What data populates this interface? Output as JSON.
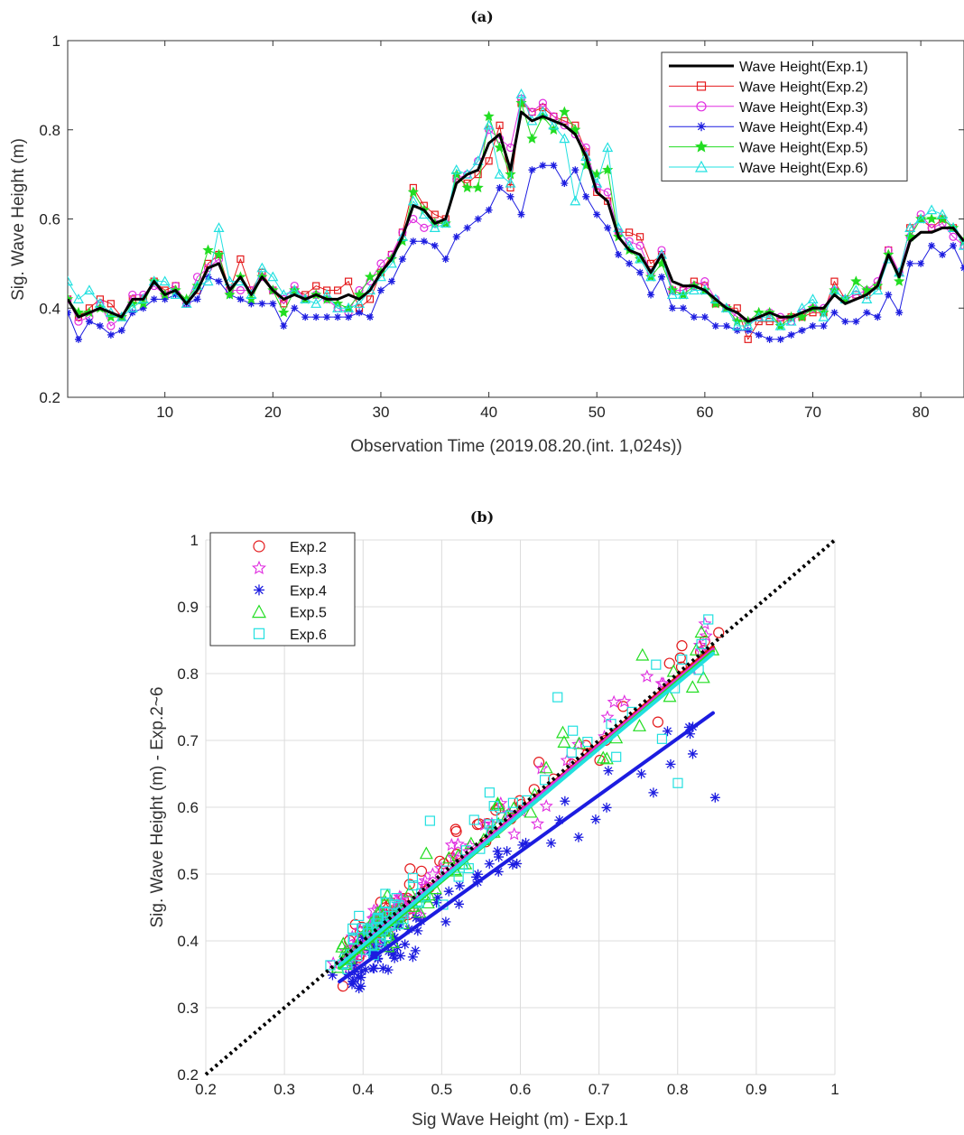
{
  "chart_data": [
    {
      "type": "line",
      "panel_label": "(a)",
      "xlabel": "Observation Time (2019.08.20.(int. 1,024s))",
      "ylabel": "Sig. Wave Height (m)",
      "xlim": [
        1,
        84
      ],
      "ylim": [
        0.2,
        1.0
      ],
      "xticks": [
        "10",
        "20",
        "30",
        "40",
        "50",
        "60",
        "70",
        "80"
      ],
      "yticks": [
        "0.2",
        "0.4",
        "0.6",
        "0.8",
        "1"
      ],
      "grid": false,
      "legend_position": "top-right",
      "x": [
        1,
        2,
        3,
        4,
        5,
        6,
        7,
        8,
        9,
        10,
        11,
        12,
        13,
        14,
        15,
        16,
        17,
        18,
        19,
        20,
        21,
        22,
        23,
        24,
        25,
        26,
        27,
        28,
        29,
        30,
        31,
        32,
        33,
        34,
        35,
        36,
        37,
        38,
        39,
        40,
        41,
        42,
        43,
        44,
        45,
        46,
        47,
        48,
        49,
        50,
        51,
        52,
        53,
        54,
        55,
        56,
        57,
        58,
        59,
        60,
        61,
        62,
        63,
        64,
        65,
        66,
        67,
        68,
        69,
        70,
        71,
        72,
        73,
        74,
        75,
        76,
        77,
        78,
        79,
        80,
        81,
        82,
        83,
        84
      ],
      "series": [
        {
          "name": "Wave Height(Exp.1)",
          "color": "#000000",
          "marker": "none",
          "width": 3,
          "values": [
            0.42,
            0.38,
            0.39,
            0.4,
            0.39,
            0.38,
            0.42,
            0.42,
            0.46,
            0.43,
            0.44,
            0.41,
            0.44,
            0.49,
            0.5,
            0.44,
            0.47,
            0.43,
            0.47,
            0.44,
            0.42,
            0.43,
            0.42,
            0.43,
            0.42,
            0.42,
            0.43,
            0.42,
            0.44,
            0.48,
            0.51,
            0.56,
            0.63,
            0.62,
            0.59,
            0.6,
            0.68,
            0.7,
            0.71,
            0.77,
            0.79,
            0.71,
            0.84,
            0.82,
            0.83,
            0.82,
            0.81,
            0.79,
            0.74,
            0.66,
            0.64,
            0.56,
            0.53,
            0.52,
            0.48,
            0.52,
            0.46,
            0.45,
            0.45,
            0.44,
            0.42,
            0.4,
            0.39,
            0.37,
            0.38,
            0.39,
            0.38,
            0.38,
            0.39,
            0.4,
            0.4,
            0.43,
            0.41,
            0.42,
            0.43,
            0.45,
            0.52,
            0.47,
            0.55,
            0.57,
            0.57,
            0.58,
            0.58,
            0.55
          ]
        },
        {
          "name": "Wave Height(Exp.2)",
          "color": "#e41a1c",
          "marker": "square",
          "width": 1,
          "values": [
            0.42,
            0.38,
            0.4,
            0.42,
            0.41,
            0.38,
            0.42,
            0.42,
            0.46,
            0.44,
            0.45,
            0.41,
            0.44,
            0.5,
            0.52,
            0.44,
            0.51,
            0.44,
            0.48,
            0.44,
            0.41,
            0.44,
            0.43,
            0.45,
            0.44,
            0.44,
            0.46,
            0.4,
            0.42,
            0.48,
            0.52,
            0.57,
            0.67,
            0.63,
            0.61,
            0.6,
            0.69,
            0.68,
            0.7,
            0.73,
            0.81,
            0.67,
            0.86,
            0.84,
            0.85,
            0.83,
            0.82,
            0.81,
            0.75,
            0.66,
            0.64,
            0.57,
            0.57,
            0.56,
            0.5,
            0.52,
            0.44,
            0.44,
            0.46,
            0.45,
            0.41,
            0.4,
            0.4,
            0.33,
            0.37,
            0.37,
            0.37,
            0.38,
            0.38,
            0.39,
            0.39,
            0.46,
            0.42,
            0.43,
            0.43,
            0.45,
            0.53,
            0.48,
            0.58,
            0.6,
            0.58,
            0.6,
            0.58,
            0.55
          ]
        },
        {
          "name": "Wave Height(Exp.3)",
          "color": "#e02ee0",
          "marker": "circle",
          "width": 1,
          "values": [
            0.42,
            0.37,
            0.38,
            0.41,
            0.36,
            0.38,
            0.43,
            0.43,
            0.45,
            0.43,
            0.45,
            0.41,
            0.47,
            0.49,
            0.51,
            0.44,
            0.44,
            0.44,
            0.47,
            0.44,
            0.42,
            0.45,
            0.42,
            0.43,
            0.42,
            0.4,
            0.39,
            0.44,
            0.46,
            0.5,
            0.52,
            0.57,
            0.6,
            0.58,
            0.59,
            0.59,
            0.69,
            0.7,
            0.73,
            0.8,
            0.78,
            0.76,
            0.87,
            0.84,
            0.86,
            0.83,
            0.81,
            0.79,
            0.76,
            0.67,
            0.66,
            0.57,
            0.55,
            0.54,
            0.48,
            0.53,
            0.44,
            0.44,
            0.45,
            0.46,
            0.42,
            0.4,
            0.38,
            0.37,
            0.38,
            0.39,
            0.38,
            0.37,
            0.39,
            0.4,
            0.4,
            0.44,
            0.42,
            0.43,
            0.44,
            0.46,
            0.53,
            0.48,
            0.56,
            0.61,
            0.58,
            0.59,
            0.56,
            0.54
          ]
        },
        {
          "name": "Wave Height(Exp.4)",
          "color": "#1c1ce0",
          "marker": "asterisk",
          "width": 1,
          "values": [
            0.39,
            0.33,
            0.37,
            0.36,
            0.34,
            0.35,
            0.39,
            0.4,
            0.42,
            0.42,
            0.43,
            0.41,
            0.42,
            0.47,
            0.46,
            0.43,
            0.42,
            0.41,
            0.41,
            0.41,
            0.36,
            0.4,
            0.38,
            0.38,
            0.38,
            0.38,
            0.38,
            0.39,
            0.38,
            0.44,
            0.46,
            0.51,
            0.55,
            0.55,
            0.54,
            0.51,
            0.56,
            0.58,
            0.6,
            0.62,
            0.67,
            0.65,
            0.61,
            0.71,
            0.72,
            0.72,
            0.68,
            0.71,
            0.65,
            0.61,
            0.58,
            0.52,
            0.5,
            0.48,
            0.43,
            0.47,
            0.4,
            0.4,
            0.38,
            0.38,
            0.36,
            0.36,
            0.35,
            0.35,
            0.34,
            0.33,
            0.33,
            0.34,
            0.35,
            0.36,
            0.36,
            0.39,
            0.37,
            0.37,
            0.39,
            0.38,
            0.43,
            0.39,
            0.5,
            0.5,
            0.54,
            0.52,
            0.54,
            0.49
          ]
        },
        {
          "name": "Wave Height(Exp.5)",
          "color": "#22dd22",
          "marker": "star",
          "width": 1,
          "values": [
            0.42,
            0.39,
            0.39,
            0.4,
            0.38,
            0.38,
            0.41,
            0.41,
            0.46,
            0.43,
            0.44,
            0.42,
            0.45,
            0.53,
            0.52,
            0.43,
            0.47,
            0.42,
            0.47,
            0.44,
            0.39,
            0.44,
            0.42,
            0.43,
            0.42,
            0.41,
            0.4,
            0.43,
            0.47,
            0.48,
            0.51,
            0.55,
            0.66,
            0.62,
            0.59,
            0.59,
            0.7,
            0.67,
            0.67,
            0.83,
            0.76,
            0.7,
            0.86,
            0.78,
            0.83,
            0.8,
            0.84,
            0.8,
            0.72,
            0.7,
            0.71,
            0.56,
            0.53,
            0.51,
            0.47,
            0.5,
            0.44,
            0.43,
            0.45,
            0.44,
            0.41,
            0.4,
            0.37,
            0.37,
            0.39,
            0.39,
            0.36,
            0.38,
            0.38,
            0.4,
            0.39,
            0.44,
            0.42,
            0.46,
            0.44,
            0.45,
            0.52,
            0.46,
            0.56,
            0.6,
            0.6,
            0.6,
            0.58,
            0.55
          ]
        },
        {
          "name": "Wave Height(Exp.6)",
          "color": "#22e0e0",
          "marker": "triangle",
          "width": 1,
          "values": [
            0.46,
            0.42,
            0.44,
            0.41,
            0.39,
            0.38,
            0.4,
            0.42,
            0.46,
            0.46,
            0.43,
            0.41,
            0.45,
            0.46,
            0.58,
            0.46,
            0.46,
            0.43,
            0.49,
            0.47,
            0.43,
            0.44,
            0.42,
            0.41,
            0.43,
            0.4,
            0.4,
            0.41,
            0.44,
            0.47,
            0.5,
            0.56,
            0.64,
            0.61,
            0.58,
            0.59,
            0.71,
            0.7,
            0.73,
            0.81,
            0.7,
            0.68,
            0.88,
            0.82,
            0.84,
            0.81,
            0.78,
            0.64,
            0.74,
            0.68,
            0.76,
            0.58,
            0.54,
            0.51,
            0.47,
            0.52,
            0.43,
            0.43,
            0.44,
            0.44,
            0.42,
            0.4,
            0.36,
            0.36,
            0.38,
            0.38,
            0.36,
            0.37,
            0.4,
            0.42,
            0.38,
            0.44,
            0.42,
            0.44,
            0.42,
            0.44,
            0.51,
            0.48,
            0.58,
            0.6,
            0.62,
            0.61,
            0.58,
            0.54
          ]
        }
      ]
    },
    {
      "type": "scatter",
      "panel_label": "(b)",
      "xlabel": "Sig Wave Height (m) - Exp.1",
      "ylabel": "Sig. Wave Height (m) - Exp.2~6",
      "xlim": [
        0.2,
        1.0
      ],
      "ylim": [
        0.2,
        1.0
      ],
      "xticks": [
        "0.2",
        "0.3",
        "0.4",
        "0.5",
        "0.6",
        "0.7",
        "0.8",
        "0.9",
        "1"
      ],
      "yticks": [
        "0.2",
        "0.3",
        "0.4",
        "0.5",
        "0.6",
        "0.7",
        "0.8",
        "0.9",
        "1"
      ],
      "grid": true,
      "legend_position": "top-left",
      "reference_line": {
        "style": "dotted",
        "color": "#000000",
        "from": [
          0.2,
          0.2
        ],
        "to": [
          1.0,
          1.0
        ]
      },
      "series": [
        {
          "name": "Exp.2",
          "color": "#e41a1c",
          "marker": "circle",
          "fit": {
            "color": "#e41a1c",
            "x": [
              0.37,
              0.845
            ],
            "y": [
              0.365,
              0.84
            ]
          }
        },
        {
          "name": "Exp.3",
          "color": "#e02ee0",
          "marker": "star",
          "fit": {
            "color": "#e02ee0",
            "x": [
              0.37,
              0.845
            ],
            "y": [
              0.366,
              0.836
            ]
          }
        },
        {
          "name": "Exp.4",
          "color": "#1c1ce0",
          "marker": "asterisk",
          "fit": {
            "color": "#1c1ce0",
            "x": [
              0.37,
              0.845
            ],
            "y": [
              0.339,
              0.741
            ]
          }
        },
        {
          "name": "Exp.5",
          "color": "#22dd22",
          "marker": "triangle",
          "fit": {
            "color": "#22dd22",
            "x": [
              0.37,
              0.845
            ],
            "y": [
              0.36,
              0.833
            ]
          }
        },
        {
          "name": "Exp.6",
          "color": "#22e0e0",
          "marker": "square",
          "fit": {
            "color": "#22e0e0",
            "x": [
              0.37,
              0.845
            ],
            "y": [
              0.364,
              0.83
            ]
          }
        }
      ]
    }
  ]
}
